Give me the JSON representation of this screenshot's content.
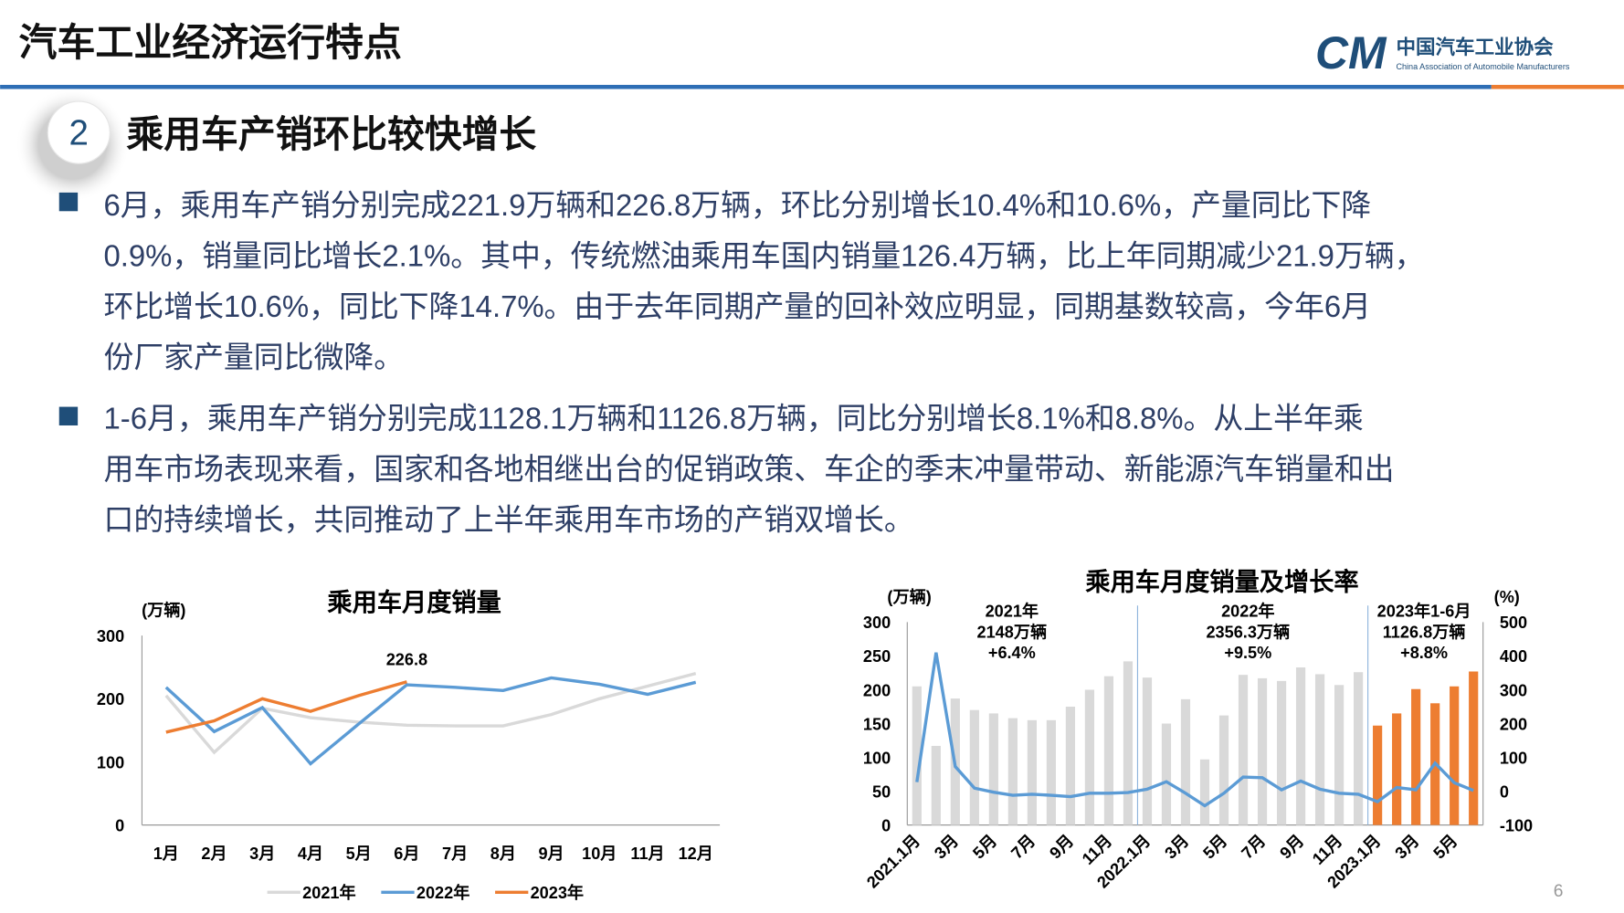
{
  "header": {
    "title": "汽车工业经济运行特点",
    "logo_name": "中国汽车工业协会",
    "logo_english": "China Association of Automobile Manufacturers"
  },
  "section": {
    "number": "2",
    "title": "乘用车产销环比较快增长"
  },
  "bullets": [
    {
      "lines": [
        "6月，乘用车产销分别完成221.9万辆和226.8万辆，环比分别增长10.4%和10.6%，产量同比下降",
        "0.9%，销量同比增长2.1%。其中，传统燃油乘用车国内销量126.4万辆，比上年同期减少21.9万辆，",
        "环比增长10.6%，同比下降14.7%。由于去年同期产量的回补效应明显，同期基数较高，今年6月",
        "份厂家产量同比微降。"
      ]
    },
    {
      "lines": [
        "1-6月，乘用车产销分别完成1128.1万辆和1126.8万辆，同比分别增长8.1%和8.8%。从上半年乘",
        "用车市场表现来看，国家和各地相继出台的促销政策、车企的季末冲量带动、新能源汽车销量和出",
        "口的持续增长，共同推动了上半年乘用车市场的产销双增长。"
      ]
    }
  ],
  "page_number": "6",
  "chart_data": [
    {
      "type": "line",
      "title": "乘用车月度销量",
      "y_label": "(万辆)",
      "categories": [
        "1月",
        "2月",
        "3月",
        "4月",
        "5月",
        "6月",
        "7月",
        "8月",
        "9月",
        "10月",
        "11月",
        "12月"
      ],
      "series": [
        {
          "name": "2021年",
          "color": "#d9d9d9",
          "values": [
            205,
            115,
            185,
            170,
            163,
            158,
            157,
            157,
            175,
            200,
            220,
            240
          ]
        },
        {
          "name": "2022年",
          "color": "#5b9bd5",
          "values": [
            218,
            148,
            186,
            97,
            160,
            222,
            218,
            213,
            233,
            223,
            207,
            226
          ]
        },
        {
          "name": "2023年",
          "color": "#ed7d31",
          "values": [
            147,
            165,
            200,
            180,
            205,
            226.8,
            null,
            null,
            null,
            null,
            null,
            null
          ],
          "value_labels": [
            null,
            null,
            null,
            null,
            null,
            "226.8",
            null,
            null,
            null,
            null,
            null,
            null
          ]
        }
      ],
      "ylim": [
        0,
        300
      ],
      "yticks": [
        0,
        100,
        200,
        300
      ],
      "grid": false,
      "legend": "bottom"
    },
    {
      "type": "bar",
      "title": "乘用车月度销量及增长率",
      "y_label": "(万辆)",
      "y2_label": "(%)",
      "categories": [
        "2021.1月",
        null,
        "3月",
        null,
        "5月",
        null,
        "7月",
        null,
        "9月",
        null,
        "11月",
        null,
        "2022.1月",
        null,
        "3月",
        null,
        "5月",
        null,
        "7月",
        null,
        "9月",
        null,
        "11月",
        null,
        "2023.1月",
        null,
        "3月",
        null,
        "5月",
        null
      ],
      "series": [
        {
          "type": "bar",
          "colors": [
            "#d9d9d9",
            "#d9d9d9",
            "#d9d9d9",
            "#d9d9d9",
            "#d9d9d9",
            "#d9d9d9",
            "#d9d9d9",
            "#d9d9d9",
            "#d9d9d9",
            "#d9d9d9",
            "#d9d9d9",
            "#d9d9d9",
            "#d9d9d9",
            "#d9d9d9",
            "#d9d9d9",
            "#d9d9d9",
            "#d9d9d9",
            "#d9d9d9",
            "#d9d9d9",
            "#d9d9d9",
            "#d9d9d9",
            "#d9d9d9",
            "#d9d9d9",
            "#d9d9d9",
            "#ed7d31",
            "#ed7d31",
            "#ed7d31",
            "#ed7d31",
            "#ed7d31",
            "#ed7d31"
          ],
          "values": [
            205,
            117,
            187,
            170,
            165,
            158,
            155,
            155,
            175,
            200,
            220,
            242,
            218,
            150,
            186,
            97,
            162,
            222,
            217,
            213,
            233,
            223,
            207,
            226,
            147,
            165,
            201,
            180,
            205,
            227
          ]
        },
        {
          "type": "line",
          "axis": "y2",
          "color": "#5b9bd5",
          "values": [
            27,
            410,
            73,
            9,
            -3,
            -12,
            -9,
            -12,
            -16,
            -6,
            -6,
            -4,
            6,
            28,
            -6,
            -43,
            -6,
            42,
            40,
            4,
            30,
            6,
            -6,
            -9,
            -31,
            11,
            4,
            83,
            25,
            2
          ]
        }
      ],
      "annotations": [
        [
          "2021年",
          "2148万辆",
          "+6.4%"
        ],
        [
          "2022年",
          "2356.3万辆",
          "+9.5%"
        ],
        [
          "2023年1-6月",
          "1126.8万辆",
          "+8.8%"
        ]
      ],
      "ylim": [
        0,
        300
      ],
      "yticks": [
        0,
        50,
        100,
        150,
        200,
        250,
        300
      ],
      "y2lim": [
        -100,
        500
      ],
      "y2ticks": [
        -100,
        0,
        100,
        200,
        300,
        400,
        500
      ],
      "grid": false
    }
  ]
}
